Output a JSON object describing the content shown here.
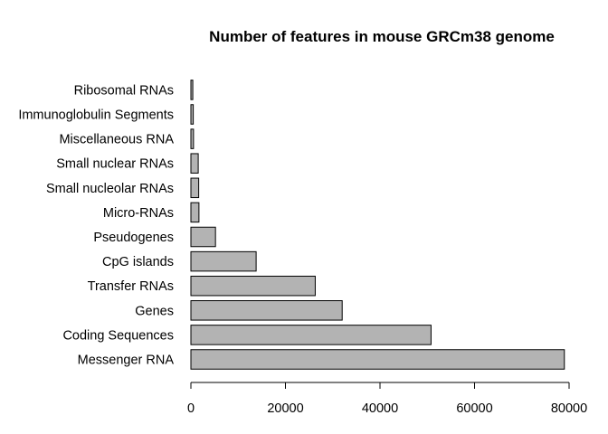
{
  "chart_data": {
    "type": "bar",
    "orientation": "horizontal",
    "title": "Number of features in mouse GRCm38 genome",
    "xlabel": "",
    "ylabel": "",
    "categories": [
      "Messenger RNA",
      "Coding Sequences",
      "Genes",
      "Transfer RNAs",
      "CpG islands",
      "Pseudogenes",
      "Micro-RNAs",
      "Small nucleolar RNAs",
      "Small nuclear RNAs",
      "Miscellaneous RNA",
      "Immunoglobulin Segments",
      "Ribosomal RNAs"
    ],
    "values": [
      79000,
      50800,
      32000,
      26300,
      13800,
      5200,
      1700,
      1650,
      1550,
      550,
      500,
      400
    ],
    "xlim": [
      0,
      80000
    ],
    "xticks": [
      0,
      20000,
      40000,
      60000,
      80000
    ],
    "xtick_labels": [
      "0",
      "20000",
      "40000",
      "60000",
      "80000"
    ],
    "bar_color": "#b3b3b3",
    "grid": false,
    "legend": "none"
  }
}
